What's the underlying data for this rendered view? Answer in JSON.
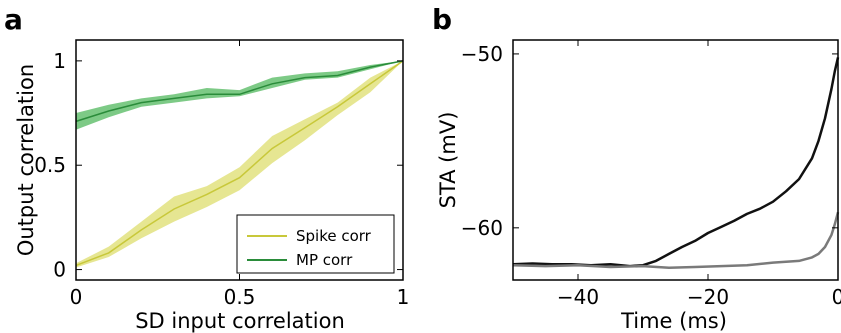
{
  "panels": {
    "a_label": "a",
    "b_label": "b"
  },
  "chart_data": [
    {
      "type": "line",
      "panel": "a",
      "xlabel": "SD input correlation",
      "ylabel": "Output correlation",
      "xlim": [
        0,
        1
      ],
      "ylim": [
        -0.05,
        1.1
      ],
      "xticks": [
        0,
        0.5,
        1
      ],
      "xtick_labels": [
        "0",
        "0.5",
        "1"
      ],
      "yticks": [
        0,
        0.5,
        1
      ],
      "ytick_labels": [
        "0",
        "0.5",
        "1"
      ],
      "grid": false,
      "legend_position": "lower-right",
      "series": [
        {
          "name": "Spike corr",
          "color": "#c8c83a",
          "band_color": "#dede6e",
          "x": [
            0,
            0.1,
            0.2,
            0.3,
            0.4,
            0.5,
            0.6,
            0.7,
            0.8,
            0.9,
            1.0
          ],
          "values": [
            0.02,
            0.08,
            0.19,
            0.29,
            0.36,
            0.44,
            0.58,
            0.68,
            0.78,
            0.89,
            1.0
          ],
          "lower": [
            0.01,
            0.06,
            0.15,
            0.23,
            0.3,
            0.38,
            0.51,
            0.62,
            0.74,
            0.85,
            1.0
          ],
          "upper": [
            0.03,
            0.11,
            0.23,
            0.35,
            0.4,
            0.49,
            0.64,
            0.72,
            0.8,
            0.92,
            1.0
          ]
        },
        {
          "name": "MP corr",
          "color": "#2a8c3a",
          "band_color": "#52b85e",
          "x": [
            0,
            0.1,
            0.2,
            0.3,
            0.4,
            0.5,
            0.6,
            0.7,
            0.8,
            0.9,
            1.0
          ],
          "values": [
            0.71,
            0.76,
            0.8,
            0.82,
            0.84,
            0.84,
            0.89,
            0.92,
            0.93,
            0.97,
            1.0
          ],
          "lower": [
            0.67,
            0.73,
            0.78,
            0.8,
            0.82,
            0.83,
            0.87,
            0.91,
            0.92,
            0.96,
            1.0
          ],
          "upper": [
            0.75,
            0.79,
            0.82,
            0.84,
            0.87,
            0.86,
            0.92,
            0.94,
            0.95,
            0.98,
            1.0
          ]
        }
      ]
    },
    {
      "type": "line",
      "panel": "b",
      "xlabel": "Time (ms)",
      "ylabel": "STA (mV)",
      "xlim": [
        -50,
        0
      ],
      "ylim": [
        -63,
        -49.2
      ],
      "xticks": [
        -40,
        -20,
        0
      ],
      "xtick_labels": [
        "−40",
        "−20",
        "0"
      ],
      "yticks": [
        -60,
        -50
      ],
      "ytick_labels": [
        "−60",
        "−50"
      ],
      "grid": false,
      "series": [
        {
          "color": "#111111",
          "x": [
            -50,
            -47,
            -44,
            -41,
            -38,
            -35,
            -32,
            -30,
            -28,
            -26,
            -24,
            -22,
            -20,
            -18,
            -16,
            -14,
            -12,
            -10,
            -8,
            -6,
            -4,
            -3,
            -2,
            -1,
            -0.5,
            0
          ],
          "values": [
            -62.1,
            -62.05,
            -62.1,
            -62.1,
            -62.15,
            -62.1,
            -62.2,
            -62.15,
            -61.9,
            -61.5,
            -61.1,
            -60.75,
            -60.3,
            -59.95,
            -59.6,
            -59.2,
            -58.9,
            -58.5,
            -57.9,
            -57.2,
            -56.0,
            -55.0,
            -53.7,
            -52.0,
            -51.0,
            -50.2
          ]
        },
        {
          "color": "#7a7a7a",
          "x": [
            -50,
            -45,
            -40,
            -35,
            -30,
            -26,
            -22,
            -18,
            -14,
            -10,
            -6,
            -4,
            -3,
            -2,
            -1,
            -0.5,
            0
          ],
          "values": [
            -62.15,
            -62.2,
            -62.15,
            -62.25,
            -62.2,
            -62.3,
            -62.25,
            -62.2,
            -62.15,
            -62.0,
            -61.9,
            -61.7,
            -61.5,
            -61.1,
            -60.4,
            -59.8,
            -59.1
          ]
        }
      ]
    }
  ]
}
